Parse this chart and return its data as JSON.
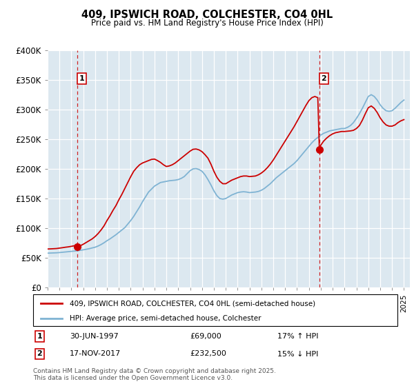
{
  "title": "409, IPSWICH ROAD, COLCHESTER, CO4 0HL",
  "subtitle": "Price paid vs. HM Land Registry's House Price Index (HPI)",
  "ylabel_ticks": [
    "£0",
    "£50K",
    "£100K",
    "£150K",
    "£200K",
    "£250K",
    "£300K",
    "£350K",
    "£400K"
  ],
  "ylim": [
    0,
    400000
  ],
  "xlim_start": 1995.0,
  "xlim_end": 2025.5,
  "legend_line1": "409, IPSWICH ROAD, COLCHESTER, CO4 0HL (semi-detached house)",
  "legend_line2": "HPI: Average price, semi-detached house, Colchester",
  "transaction1_date": "30-JUN-1997",
  "transaction1_price": "£69,000",
  "transaction1_hpi": "17% ↑ HPI",
  "transaction1_year": 1997.5,
  "transaction1_value": 69000,
  "transaction2_date": "17-NOV-2017",
  "transaction2_price": "£232,500",
  "transaction2_hpi": "15% ↓ HPI",
  "transaction2_year": 2017.88,
  "transaction2_value": 232500,
  "line_color_property": "#cc0000",
  "line_color_hpi": "#7fb3d3",
  "background_color": "#ffffff",
  "plot_bg_color": "#dce8f0",
  "grid_color": "#ffffff",
  "footer": "Contains HM Land Registry data © Crown copyright and database right 2025.\nThis data is licensed under the Open Government Licence v3.0.",
  "hpi_years": [
    1995.0,
    1995.25,
    1995.5,
    1995.75,
    1996.0,
    1996.25,
    1996.5,
    1996.75,
    1997.0,
    1997.25,
    1997.5,
    1997.75,
    1998.0,
    1998.25,
    1998.5,
    1998.75,
    1999.0,
    1999.25,
    1999.5,
    1999.75,
    2000.0,
    2000.25,
    2000.5,
    2000.75,
    2001.0,
    2001.25,
    2001.5,
    2001.75,
    2002.0,
    2002.25,
    2002.5,
    2002.75,
    2003.0,
    2003.25,
    2003.5,
    2003.75,
    2004.0,
    2004.25,
    2004.5,
    2004.75,
    2005.0,
    2005.25,
    2005.5,
    2005.75,
    2006.0,
    2006.25,
    2006.5,
    2006.75,
    2007.0,
    2007.25,
    2007.5,
    2007.75,
    2008.0,
    2008.25,
    2008.5,
    2008.75,
    2009.0,
    2009.25,
    2009.5,
    2009.75,
    2010.0,
    2010.25,
    2010.5,
    2010.75,
    2011.0,
    2011.25,
    2011.5,
    2011.75,
    2012.0,
    2012.25,
    2012.5,
    2012.75,
    2013.0,
    2013.25,
    2013.5,
    2013.75,
    2014.0,
    2014.25,
    2014.5,
    2014.75,
    2015.0,
    2015.25,
    2015.5,
    2015.75,
    2016.0,
    2016.25,
    2016.5,
    2016.75,
    2017.0,
    2017.25,
    2017.5,
    2017.75,
    2018.0,
    2018.25,
    2018.5,
    2018.75,
    2019.0,
    2019.25,
    2019.5,
    2019.75,
    2020.0,
    2020.25,
    2020.5,
    2020.75,
    2021.0,
    2021.25,
    2021.5,
    2021.75,
    2022.0,
    2022.25,
    2022.5,
    2022.75,
    2023.0,
    2023.25,
    2023.5,
    2023.75,
    2024.0,
    2024.25,
    2024.5,
    2024.75,
    2025.0
  ],
  "hpi_values": [
    58000,
    58200,
    58400,
    58600,
    59000,
    59500,
    60000,
    60500,
    61000,
    61500,
    62000,
    62800,
    63600,
    64500,
    65500,
    66800,
    68000,
    70000,
    72500,
    75500,
    79000,
    82000,
    85500,
    89000,
    93000,
    97000,
    101000,
    107000,
    113000,
    120000,
    128000,
    136000,
    145000,
    153000,
    161000,
    166000,
    171000,
    174000,
    177000,
    178000,
    179000,
    180000,
    180500,
    181000,
    182000,
    184000,
    187000,
    192000,
    197000,
    200000,
    200500,
    199000,
    196000,
    190000,
    182000,
    173000,
    163000,
    155000,
    150000,
    149000,
    150000,
    153000,
    156000,
    158000,
    160000,
    161000,
    161500,
    161000,
    160000,
    160500,
    161000,
    162000,
    164000,
    167000,
    171000,
    175000,
    180000,
    185000,
    189000,
    193000,
    197000,
    201000,
    205000,
    209000,
    214000,
    220000,
    226000,
    232000,
    238000,
    244000,
    249000,
    253000,
    257000,
    260000,
    262000,
    264000,
    265000,
    266000,
    267000,
    268000,
    268000,
    270000,
    273000,
    278000,
    285000,
    293000,
    302000,
    312000,
    322000,
    325000,
    322000,
    316000,
    308000,
    302000,
    298000,
    297000,
    298000,
    302000,
    307000,
    312000,
    316000
  ],
  "prop_years": [
    1995.0,
    1995.25,
    1995.5,
    1995.75,
    1996.0,
    1996.25,
    1996.5,
    1996.75,
    1997.0,
    1997.25,
    1997.5,
    1997.75,
    1998.0,
    1998.25,
    1998.5,
    1998.75,
    1999.0,
    1999.25,
    1999.5,
    1999.75,
    2000.0,
    2000.25,
    2000.5,
    2000.75,
    2001.0,
    2001.25,
    2001.5,
    2001.75,
    2002.0,
    2002.25,
    2002.5,
    2002.75,
    2003.0,
    2003.25,
    2003.5,
    2003.75,
    2004.0,
    2004.25,
    2004.5,
    2004.75,
    2005.0,
    2005.25,
    2005.5,
    2005.75,
    2006.0,
    2006.25,
    2006.5,
    2006.75,
    2007.0,
    2007.25,
    2007.5,
    2007.75,
    2008.0,
    2008.25,
    2008.5,
    2008.75,
    2009.0,
    2009.25,
    2009.5,
    2009.75,
    2010.0,
    2010.25,
    2010.5,
    2010.75,
    2011.0,
    2011.25,
    2011.5,
    2011.75,
    2012.0,
    2012.25,
    2012.5,
    2012.75,
    2013.0,
    2013.25,
    2013.5,
    2013.75,
    2014.0,
    2014.25,
    2014.5,
    2014.75,
    2015.0,
    2015.25,
    2015.5,
    2015.75,
    2016.0,
    2016.25,
    2016.5,
    2016.75,
    2017.0,
    2017.25,
    2017.5,
    2017.75,
    2017.88,
    2018.0,
    2018.25,
    2018.5,
    2018.75,
    2019.0,
    2019.25,
    2019.5,
    2019.75,
    2020.0,
    2020.25,
    2020.5,
    2020.75,
    2021.0,
    2021.25,
    2021.5,
    2021.75,
    2022.0,
    2022.25,
    2022.5,
    2022.75,
    2023.0,
    2023.25,
    2023.5,
    2023.75,
    2024.0,
    2024.25,
    2024.5,
    2024.75,
    2025.0
  ],
  "prop_values": [
    65000,
    65200,
    65500,
    65800,
    66500,
    67200,
    68000,
    68600,
    69500,
    70500,
    69000,
    70500,
    73000,
    76000,
    79000,
    82000,
    86000,
    91000,
    97000,
    104000,
    113000,
    121000,
    130000,
    138000,
    148000,
    157000,
    167000,
    177000,
    187000,
    196000,
    202000,
    207000,
    210000,
    212000,
    214000,
    216000,
    216500,
    214000,
    211000,
    207000,
    204000,
    205000,
    207000,
    210000,
    214000,
    218000,
    222000,
    226000,
    230000,
    233000,
    233500,
    232000,
    229000,
    224000,
    218000,
    208000,
    196000,
    186000,
    179000,
    175000,
    175000,
    178000,
    181000,
    183000,
    185000,
    187000,
    188000,
    188000,
    187000,
    187500,
    188000,
    190000,
    193000,
    197000,
    202000,
    208000,
    215000,
    223000,
    231000,
    239000,
    247000,
    255000,
    263000,
    271000,
    280000,
    289000,
    298000,
    307000,
    315000,
    320000,
    322000,
    320000,
    232500,
    240000,
    247000,
    252000,
    256000,
    259000,
    261000,
    262000,
    263000,
    263000,
    263500,
    264000,
    265000,
    268000,
    273000,
    282000,
    293000,
    303000,
    306000,
    302000,
    295000,
    286000,
    279000,
    274000,
    272000,
    272000,
    274000,
    278000,
    281000,
    283000
  ]
}
